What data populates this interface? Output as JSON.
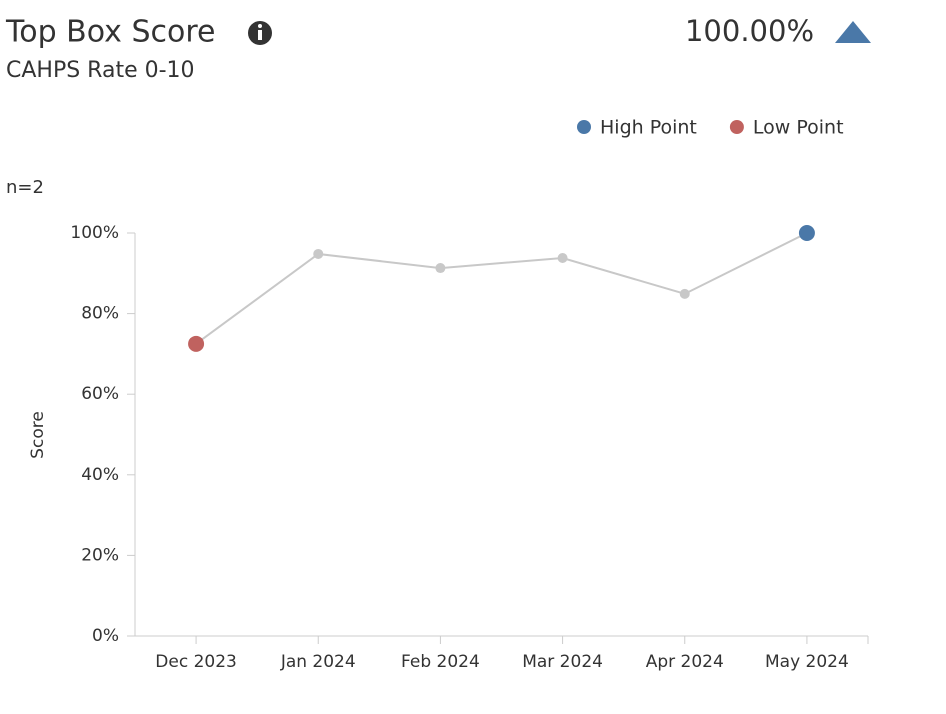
{
  "chart_data": {
    "type": "line",
    "title": "Top Box Score",
    "subtitle": "CAHPS Rate 0-10",
    "headline": "100.00%",
    "sample_size": "n=2",
    "y_label": "Score",
    "categories": [
      "Dec 2023",
      "Jan 2024",
      "Feb 2024",
      "Mar 2024",
      "Apr 2024",
      "May 2024"
    ],
    "series": [
      {
        "name": "Top Box Score",
        "color": "#c8c8c8",
        "values": [
          72.5,
          94.8,
          91.3,
          93.8,
          84.9,
          100
        ]
      }
    ],
    "markers": [
      {
        "name": "High Point",
        "color": "#4a78a8"
      },
      {
        "name": "Low Point",
        "color": "#c0625f"
      }
    ],
    "point_color": "#c8c8c8",
    "ylim": [
      0,
      100
    ],
    "yticks": [
      {
        "value": 0,
        "label": "0%"
      },
      {
        "value": 20,
        "label": "20%"
      },
      {
        "value": 40,
        "label": "40%"
      },
      {
        "value": 60,
        "label": "60%"
      },
      {
        "value": 80,
        "label": "80%"
      },
      {
        "value": 100,
        "label": "100%"
      }
    ]
  }
}
